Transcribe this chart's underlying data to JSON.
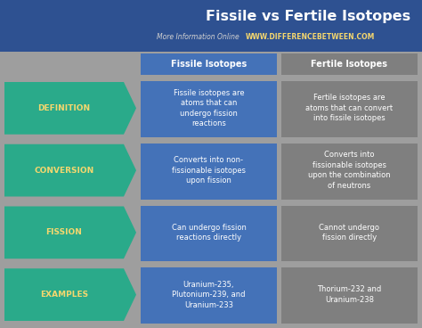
{
  "title": "Fissile vs Fertile Isotopes",
  "subtitle_plain": "More Information Online",
  "subtitle_url": "WWW.DIFFERENCEBETWEEN.COM",
  "col1_header": "Fissile Isotopes",
  "col2_header": "Fertile Isotopes",
  "rows": [
    {
      "label": "DEFINITION",
      "col1": "Fissile isotopes are\natoms that can\nundergo fission\nreactions",
      "col2": "Fertile isotopes are\natoms that can convert\ninto fissile isotopes"
    },
    {
      "label": "CONVERSION",
      "col1": "Converts into non-\nfissionable isotopes\nupon fission",
      "col2": "Converts into\nfissionable isotopes\nupon the combination\nof neutrons"
    },
    {
      "label": "FISSION",
      "col1": "Can undergo fission\nreactions directly",
      "col2": "Cannot undergo\nfission directly"
    },
    {
      "label": "EXAMPLES",
      "col1": "Uranium-235,\nPlutonium-239, and\nUranium-233",
      "col2": "Thorium-232 and\nUranium-238"
    }
  ],
  "bg_color": "#9e9e9e",
  "title_bg": "#2e5191",
  "header_col1_bg": "#4472b8",
  "header_col2_bg": "#7f7f7f",
  "arrow_color": "#2aaa8a",
  "col1_color": "#4472b8",
  "col2_color": "#7f7f7f",
  "title_color": "#ffffff",
  "header_text_color": "#ffffff",
  "cell_text_color": "#ffffff",
  "label_color": "#f5d76e",
  "url_color": "#f5d76e",
  "subtitle_color": "#d0d0d0"
}
